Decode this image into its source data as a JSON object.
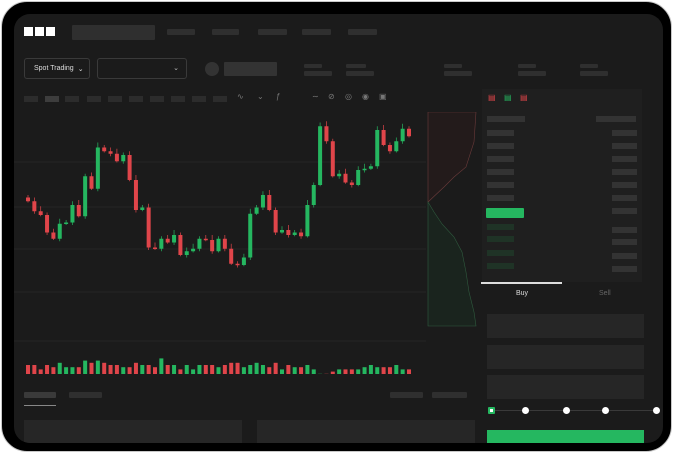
{
  "brand": {
    "logo_text": "OKX"
  },
  "toolbar": {
    "market_type": "Spot Trading"
  },
  "trade": {
    "tabs": [
      "Buy",
      "Sell"
    ],
    "active_tab": "Buy",
    "leverage_slider": {
      "value": 0,
      "steps": 5
    }
  },
  "colors": {
    "up": "#25b760",
    "down": "#e0454a",
    "background": "#1b1b1b",
    "accent": "#25b760"
  },
  "chart_data": {
    "type": "candlestick",
    "closes": [
      55,
      47,
      44,
      30,
      25,
      37,
      38,
      52,
      43,
      75,
      65,
      98,
      95,
      93,
      87,
      92,
      72,
      48,
      50,
      18,
      17,
      25,
      22,
      28,
      12,
      15,
      17,
      25,
      24,
      15,
      25,
      17,
      5,
      4,
      10,
      45,
      50,
      60,
      48,
      30,
      32,
      28,
      30,
      27,
      52,
      68,
      115,
      103,
      75,
      77,
      70,
      68,
      80,
      81,
      83,
      112,
      100,
      95,
      103,
      113,
      107
    ],
    "first_open": 58,
    "volumes": [
      5,
      5,
      3,
      5,
      4,
      6,
      4,
      4,
      4,
      7,
      6,
      7,
      6,
      5,
      5,
      4,
      4,
      6,
      5,
      5,
      4,
      8,
      5,
      5,
      3,
      5,
      3,
      5,
      5,
      5,
      4,
      5,
      6,
      6,
      4,
      5,
      6,
      5,
      4,
      6,
      3,
      5,
      4,
      4,
      5,
      3,
      1,
      1,
      2,
      3,
      3,
      3,
      3,
      4,
      5,
      4,
      4,
      4,
      5,
      3,
      3
    ]
  }
}
